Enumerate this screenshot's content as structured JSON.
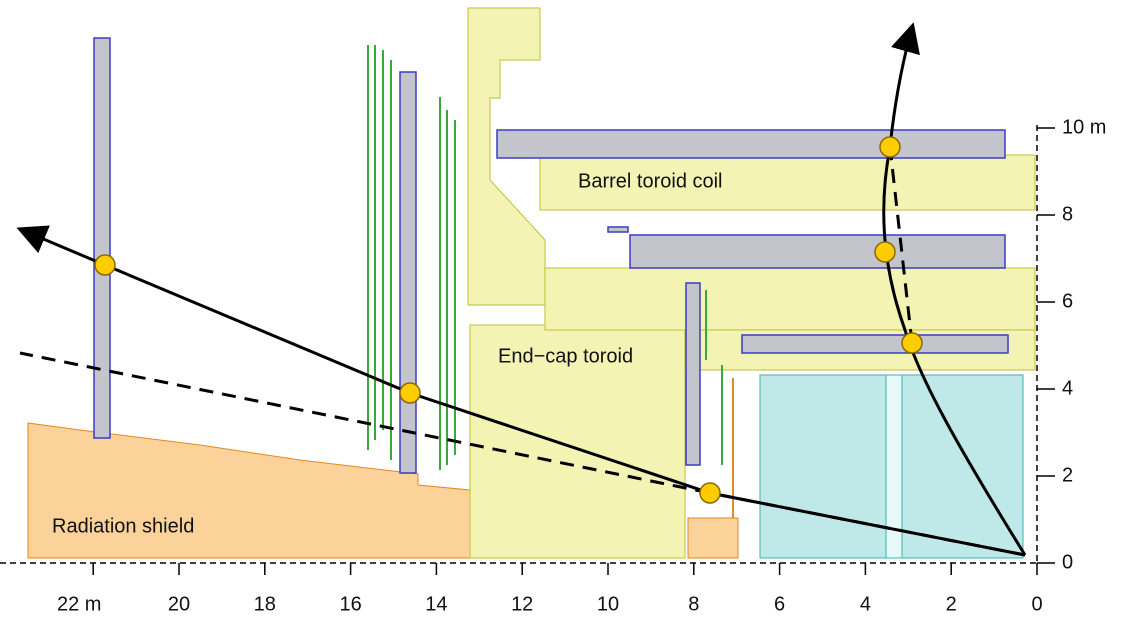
{
  "labels": {
    "barrel": "Barrel toroid coil",
    "endcap": "End−cap toroid",
    "shield": "Radiation shield"
  },
  "x_axis": {
    "ticks": [
      {
        "value": 22,
        "label": "22 m"
      },
      20,
      18,
      16,
      14,
      12,
      10,
      8,
      6,
      4,
      2,
      0
    ]
  },
  "y_axis": {
    "ticks": [
      0,
      2,
      4,
      6,
      8,
      {
        "value": 10,
        "label": "10 m"
      }
    ]
  }
}
